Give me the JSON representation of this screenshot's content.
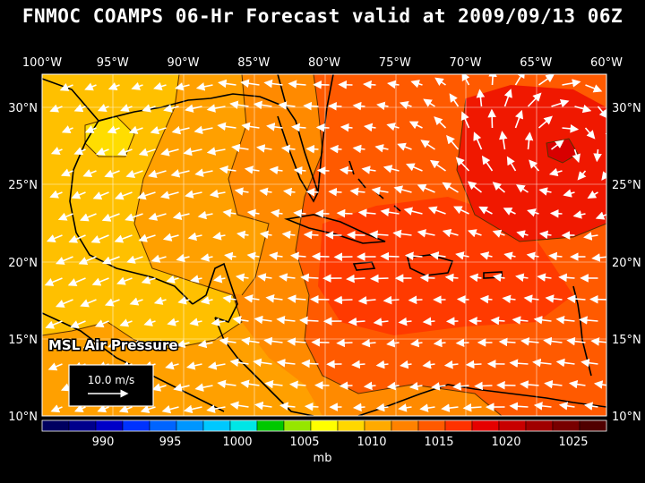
{
  "title": "FNMOC COAMPS 06-Hr Forecast valid at 2009/09/13 06Z",
  "map": {
    "lon_range": [
      -100,
      -60
    ],
    "lat_range": [
      10,
      32
    ],
    "lon_labels": [
      "100°W",
      "95°W",
      "90°W",
      "85°W",
      "80°W",
      "75°W",
      "70°W",
      "65°W",
      "60°W"
    ],
    "lat_labels": [
      "30°N",
      "25°N",
      "20°N",
      "15°N",
      "10°N"
    ],
    "field_label": "MSL Air Pressure",
    "vector_scale_label": "10.0 m/s"
  },
  "colorbar": {
    "unit_label": "mb",
    "tick_labels": [
      "990",
      "995",
      "1000",
      "1005",
      "1010",
      "1015",
      "1020",
      "1025"
    ],
    "colors": [
      "#000060",
      "#00008c",
      "#0000c8",
      "#0032ff",
      "#0064ff",
      "#0096ff",
      "#00c8ff",
      "#00e6e6",
      "#00c800",
      "#96e600",
      "#ffff00",
      "#ffd700",
      "#ffaa00",
      "#ff8200",
      "#ff5a00",
      "#ff3200",
      "#e60000",
      "#c80000",
      "#a00000",
      "#780000",
      "#500000"
    ]
  }
}
